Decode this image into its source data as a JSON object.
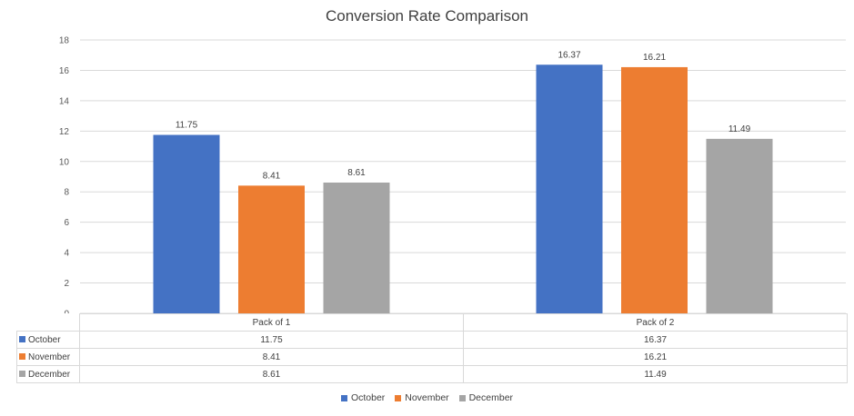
{
  "chart_data": {
    "type": "bar",
    "title": "Conversion Rate Comparison",
    "categories": [
      "Pack of 1",
      "Pack of 2"
    ],
    "series": [
      {
        "name": "October",
        "color": "#4472c4",
        "values": [
          11.75,
          16.37
        ]
      },
      {
        "name": "November",
        "color": "#ed7d31",
        "values": [
          8.41,
          16.21
        ]
      },
      {
        "name": "December",
        "color": "#a5a5a5",
        "values": [
          8.61,
          11.49
        ]
      }
    ],
    "ylim": [
      0,
      18
    ],
    "yticks": [
      "0",
      "2",
      "4",
      "6",
      "8",
      "10",
      "12",
      "14",
      "16",
      "18"
    ],
    "xlabel": "",
    "ylabel": "",
    "grid": true,
    "legend": "bottom",
    "data_table": {
      "header": [
        "Pack of 1",
        "Pack of 2"
      ],
      "rows": [
        {
          "label": "October",
          "color": "#4472c4",
          "cells": [
            "11.75",
            "16.37"
          ]
        },
        {
          "label": "November",
          "color": "#ed7d31",
          "cells": [
            "8.41",
            "16.21"
          ]
        },
        {
          "label": "December",
          "color": "#a5a5a5",
          "cells": [
            "8.61",
            "11.49"
          ]
        }
      ]
    }
  }
}
